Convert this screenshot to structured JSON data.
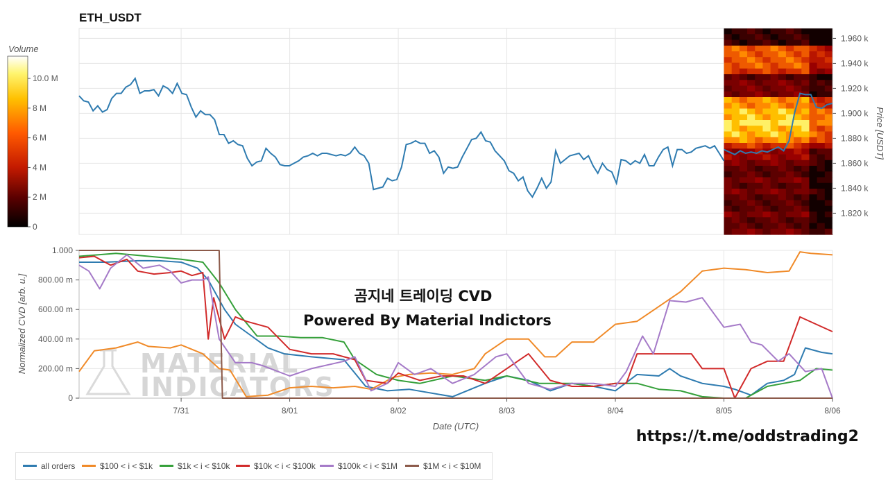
{
  "title": "ETH_USDT",
  "overlay": {
    "line1": "곰지네 트레이딩 CVD",
    "line2": "Powered By Material Indictors"
  },
  "watermark": {
    "line1": "MATERIAL",
    "line2": "INDICATORS"
  },
  "url": "https://t.me/oddstrading2",
  "volume_bar": {
    "label": "Volume",
    "ticks": [
      "10.0 M",
      "8 M",
      "6 M",
      "4 M",
      "2 M",
      "0"
    ],
    "tick_values": [
      10,
      8,
      6,
      4,
      2,
      0
    ],
    "max": 11.5
  },
  "price_axis": {
    "label": "Price [USDT]",
    "ticks": [
      "1.960 k",
      "1.940 k",
      "1.920 k",
      "1.900 k",
      "1.880 k",
      "1.860 k",
      "1.840 k",
      "1.820 k"
    ],
    "tick_values": [
      1960,
      1940,
      1920,
      1900,
      1880,
      1860,
      1840,
      1820
    ],
    "ylim": [
      1803,
      1968
    ]
  },
  "cvd_axis": {
    "label": "Normalized CVD [arb. u.]",
    "ticks": [
      "1.000",
      "800.00 m",
      "600.00 m",
      "400.00 m",
      "200.00 m",
      "0"
    ],
    "tick_values": [
      1.0,
      0.8,
      0.6,
      0.4,
      0.2,
      0.0
    ],
    "ylim": [
      0,
      1
    ]
  },
  "x_axis": {
    "label": "Date (UTC)",
    "ticks": [
      "7/31",
      "8/01",
      "8/02",
      "8/03",
      "8/04",
      "8/05",
      "8/06"
    ],
    "tick_values": [
      1,
      2,
      3,
      4,
      5,
      6,
      7
    ],
    "xlim": [
      0.06,
      7.0
    ]
  },
  "legend": [
    {
      "label": "all orders",
      "color": "#2e7bb0"
    },
    {
      "label": "$100 < i < $1k",
      "color": "#f08a28"
    },
    {
      "label": "$1k < i < $10k",
      "color": "#35a03a"
    },
    {
      "label": "$10k < i < $100k",
      "color": "#d12a2a"
    },
    {
      "label": "$100k < i < $1M",
      "color": "#a57ac8"
    },
    {
      "label": "$1M < i < $10M",
      "color": "#8c5a4a"
    }
  ],
  "chart_data": [
    {
      "type": "line",
      "title": "ETH_USDT",
      "xlabel": "",
      "ylabel": "Price [USDT]",
      "x_unit": "days (1 = 7/31)",
      "x_range": [
        0.06,
        6.0
      ],
      "ylim": [
        1803,
        1968
      ],
      "series": [
        {
          "name": "",
          "color": "#2e7bb0",
          "values": [
            1914,
            1910,
            1909,
            1902,
            1906,
            1901,
            1903,
            1912,
            1916,
            1916,
            1921,
            1923,
            1928,
            1916,
            1918,
            1918,
            1919,
            1914,
            1922,
            1920,
            1916,
            1924,
            1916,
            1915,
            1905,
            1897,
            1902,
            1899,
            1899,
            1895,
            1883,
            1883,
            1876,
            1878,
            1875,
            1874,
            1864,
            1858,
            1861,
            1862,
            1872,
            1868,
            1865,
            1859,
            1858,
            1858,
            1860,
            1862,
            1865,
            1866,
            1868,
            1866,
            1868,
            1868,
            1867,
            1866,
            1867,
            1866,
            1868,
            1873,
            1868,
            1866,
            1860,
            1839,
            1840,
            1841,
            1848,
            1846,
            1847,
            1857,
            1875,
            1876,
            1878,
            1876,
            1876,
            1868,
            1870,
            1865,
            1852,
            1857,
            1856,
            1857,
            1865,
            1872,
            1879,
            1880,
            1885,
            1878,
            1877,
            1870,
            1866,
            1862,
            1854,
            1852,
            1846,
            1849,
            1838,
            1833,
            1840,
            1848,
            1840,
            1845,
            1870,
            1860,
            1863,
            1866,
            1867,
            1868,
            1863,
            1866,
            1858,
            1852,
            1860,
            1855,
            1853,
            1844,
            1863,
            1862,
            1859,
            1862,
            1860,
            1867,
            1858,
            1858,
            1865,
            1871,
            1873,
            1858,
            1871,
            1871,
            1868,
            1869,
            1872,
            1873,
            1874,
            1872,
            1874,
            1868,
            1862
          ]
        }
      ]
    },
    {
      "type": "heatmap",
      "title": "",
      "colorbar_label": "Volume",
      "x_range": [
        6.0,
        7.0
      ],
      "price_levels": [
        1965,
        1961,
        1956,
        1951,
        1947,
        1942,
        1938,
        1933,
        1929,
        1924,
        1919,
        1915,
        1910,
        1906,
        1901,
        1896,
        1892,
        1887,
        1883,
        1878,
        1873,
        1869,
        1864,
        1860,
        1855,
        1850,
        1846,
        1841,
        1837,
        1832,
        1827,
        1823,
        1818,
        1814,
        1809,
        1805
      ],
      "intensity": [
        1,
        1,
        1,
        7,
        7,
        7,
        7,
        6,
        2,
        3,
        3,
        3,
        8,
        8,
        9,
        9,
        10,
        9,
        9,
        8,
        6,
        4,
        4,
        3,
        2,
        2,
        3,
        2,
        3,
        2,
        2,
        2,
        3,
        2,
        2,
        3
      ],
      "price_line_x": [
        6.0,
        6.05,
        6.1,
        6.15,
        6.2,
        6.25,
        6.3,
        6.35,
        6.4,
        6.45,
        6.5,
        6.55,
        6.6,
        6.65,
        6.7,
        6.75,
        6.8,
        6.85,
        6.9,
        6.95,
        7.0
      ],
      "price_line_y": [
        1871,
        1869,
        1867,
        1870,
        1868,
        1869,
        1868,
        1870,
        1869,
        1871,
        1873,
        1870,
        1878,
        1900,
        1916,
        1915,
        1915,
        1905,
        1904,
        1907,
        1908
      ]
    },
    {
      "type": "line",
      "title": "",
      "xlabel": "Date (UTC)",
      "ylabel": "Normalized CVD [arb. u.]",
      "ylim": [
        0,
        1
      ],
      "categories": [
        "7/31",
        "8/01",
        "8/02",
        "8/03",
        "8/04",
        "8/05",
        "8/06"
      ],
      "series": [
        {
          "name": "all orders",
          "color": "#2e7bb0",
          "x": [
            0.06,
            0.3,
            0.6,
            0.8,
            1.0,
            1.15,
            1.25,
            1.4,
            1.5,
            1.65,
            1.8,
            1.95,
            2.2,
            2.5,
            2.7,
            2.9,
            3.1,
            3.5,
            3.8,
            4.0,
            4.2,
            4.4,
            4.6,
            4.8,
            5.0,
            5.2,
            5.4,
            5.5,
            5.6,
            5.8,
            6.0,
            6.1,
            6.25,
            6.4,
            6.55,
            6.65,
            6.75,
            6.9,
            7.0
          ],
          "y": [
            0.92,
            0.92,
            0.93,
            0.93,
            0.92,
            0.88,
            0.8,
            0.6,
            0.5,
            0.42,
            0.34,
            0.3,
            0.28,
            0.26,
            0.08,
            0.05,
            0.06,
            0.01,
            0.1,
            0.15,
            0.12,
            0.05,
            0.1,
            0.08,
            0.05,
            0.16,
            0.15,
            0.2,
            0.15,
            0.1,
            0.08,
            0.06,
            0.02,
            0.1,
            0.12,
            0.16,
            0.34,
            0.31,
            0.3
          ]
        },
        {
          "name": "$100 < i < $1k",
          "color": "#f08a28",
          "x": [
            0.06,
            0.2,
            0.4,
            0.6,
            0.7,
            0.9,
            1.0,
            1.2,
            1.35,
            1.45,
            1.6,
            1.8,
            2.0,
            2.2,
            2.4,
            2.6,
            2.75,
            2.95,
            3.1,
            3.3,
            3.5,
            3.7,
            3.8,
            4.0,
            4.2,
            4.35,
            4.45,
            4.6,
            4.8,
            5.0,
            5.2,
            5.4,
            5.6,
            5.8,
            6.0,
            6.2,
            6.4,
            6.6,
            6.7,
            6.8,
            7.0
          ],
          "y": [
            0.18,
            0.32,
            0.34,
            0.38,
            0.35,
            0.34,
            0.36,
            0.3,
            0.2,
            0.19,
            0.01,
            0.02,
            0.07,
            0.08,
            0.07,
            0.08,
            0.06,
            0.14,
            0.16,
            0.17,
            0.16,
            0.2,
            0.3,
            0.4,
            0.4,
            0.28,
            0.28,
            0.38,
            0.38,
            0.5,
            0.52,
            0.62,
            0.72,
            0.86,
            0.88,
            0.87,
            0.85,
            0.86,
            0.99,
            0.98,
            0.97
          ]
        },
        {
          "name": "$1k < i < $10k",
          "color": "#35a03a",
          "x": [
            0.06,
            0.4,
            0.7,
            1.0,
            1.2,
            1.35,
            1.5,
            1.7,
            1.9,
            2.1,
            2.3,
            2.5,
            2.6,
            2.8,
            3.0,
            3.2,
            3.5,
            3.8,
            4.0,
            4.3,
            4.6,
            4.8,
            5.0,
            5.2,
            5.4,
            5.6,
            5.8,
            6.0,
            6.2,
            6.4,
            6.55,
            6.7,
            6.85,
            7.0
          ],
          "y": [
            0.96,
            0.98,
            0.96,
            0.94,
            0.92,
            0.78,
            0.6,
            0.42,
            0.42,
            0.41,
            0.41,
            0.38,
            0.26,
            0.16,
            0.12,
            0.1,
            0.15,
            0.12,
            0.15,
            0.1,
            0.1,
            0.08,
            0.1,
            0.1,
            0.06,
            0.05,
            0.01,
            0.0,
            0.0,
            0.08,
            0.1,
            0.12,
            0.2,
            0.19
          ]
        },
        {
          "name": "$10k < i < $100k",
          "color": "#d12a2a",
          "x": [
            0.06,
            0.2,
            0.35,
            0.5,
            0.6,
            0.75,
            0.9,
            1.0,
            1.1,
            1.2,
            1.25,
            1.3,
            1.4,
            1.5,
            1.6,
            1.8,
            2.0,
            2.2,
            2.4,
            2.6,
            2.7,
            2.9,
            3.0,
            3.2,
            3.4,
            3.6,
            3.8,
            4.0,
            4.2,
            4.4,
            4.6,
            4.8,
            5.0,
            5.1,
            5.2,
            5.3,
            5.5,
            5.7,
            5.8,
            6.0,
            6.1,
            6.25,
            6.4,
            6.55,
            6.7,
            6.85,
            7.0
          ],
          "y": [
            0.95,
            0.96,
            0.9,
            0.94,
            0.86,
            0.84,
            0.85,
            0.86,
            0.83,
            0.85,
            0.4,
            0.68,
            0.4,
            0.55,
            0.52,
            0.48,
            0.33,
            0.3,
            0.3,
            0.26,
            0.12,
            0.1,
            0.17,
            0.12,
            0.15,
            0.15,
            0.1,
            0.2,
            0.3,
            0.12,
            0.08,
            0.08,
            0.1,
            0.1,
            0.3,
            0.3,
            0.3,
            0.3,
            0.2,
            0.2,
            0.0,
            0.2,
            0.25,
            0.25,
            0.55,
            0.5,
            0.45
          ]
        },
        {
          "name": "$100k < i < $1M",
          "color": "#a57ac8",
          "x": [
            0.06,
            0.15,
            0.25,
            0.35,
            0.5,
            0.65,
            0.8,
            0.9,
            1.0,
            1.1,
            1.2,
            1.25,
            1.35,
            1.5,
            1.65,
            1.75,
            2.0,
            2.2,
            2.5,
            2.6,
            2.75,
            2.9,
            3.0,
            3.15,
            3.3,
            3.5,
            3.7,
            3.9,
            4.0,
            4.1,
            4.2,
            4.4,
            4.6,
            4.8,
            5.0,
            5.1,
            5.25,
            5.35,
            5.5,
            5.65,
            5.8,
            6.0,
            6.15,
            6.25,
            6.35,
            6.5,
            6.6,
            6.75,
            6.9,
            7.0
          ],
          "y": [
            0.9,
            0.86,
            0.74,
            0.88,
            0.97,
            0.88,
            0.9,
            0.86,
            0.78,
            0.8,
            0.8,
            0.82,
            0.4,
            0.24,
            0.24,
            0.22,
            0.15,
            0.2,
            0.25,
            0.28,
            0.05,
            0.1,
            0.24,
            0.16,
            0.2,
            0.1,
            0.16,
            0.28,
            0.3,
            0.2,
            0.1,
            0.06,
            0.1,
            0.1,
            0.08,
            0.18,
            0.42,
            0.3,
            0.66,
            0.65,
            0.68,
            0.48,
            0.5,
            0.38,
            0.36,
            0.25,
            0.3,
            0.18,
            0.2,
            0.0
          ]
        },
        {
          "name": "$1M < i < $10M",
          "color": "#8c5a4a",
          "x": [
            0.06,
            1.35,
            1.38,
            7.0
          ],
          "y": [
            1.0,
            1.0,
            0.0,
            0.0
          ]
        }
      ]
    }
  ]
}
